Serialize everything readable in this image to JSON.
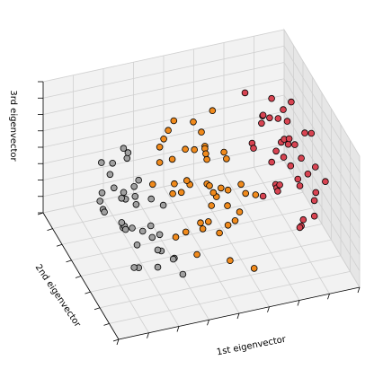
{
  "chart_data": {
    "type": "scatter",
    "title": "",
    "xlabel": "1st eigenvector",
    "ylabel": "2nd eigenvector",
    "zlabel": "3rd eigenvector",
    "tick_labels_visible": false,
    "grid": true,
    "legend": null,
    "xlim": [
      -4,
      4
    ],
    "ylim": [
      -1.5,
      1.5
    ],
    "zlim": [
      -1,
      1
    ],
    "view": {
      "elev": 48,
      "azim": -110
    },
    "groups": [
      {
        "color": "#a0a0a0",
        "points": [
          [
            -3.0,
            -0.5,
            0.5
          ],
          [
            -2.9,
            0.5,
            0.3
          ],
          [
            -3.2,
            -0.2,
            0.6
          ],
          [
            -2.7,
            0.3,
            0.4
          ],
          [
            -2.5,
            -0.4,
            0.2
          ],
          [
            -2.6,
            -0.1,
            0.1
          ],
          [
            -2.3,
            0.2,
            0.5
          ],
          [
            -2.1,
            -0.5,
            -0.1
          ],
          [
            -2.8,
            -0.6,
            0.0
          ],
          [
            -2.4,
            0.6,
            -0.2
          ],
          [
            -2.0,
            0.1,
            0.2
          ],
          [
            -2.2,
            -0.3,
            -0.3
          ],
          [
            -1.9,
            0.4,
            -0.1
          ],
          [
            -2.6,
            0.0,
            -0.4
          ],
          [
            -2.0,
            -0.8,
            -0.3
          ],
          [
            -1.8,
            -0.2,
            -0.5
          ],
          [
            -2.3,
            0.3,
            -0.6
          ],
          [
            -1.7,
            0.6,
            -0.4
          ],
          [
            -2.5,
            -0.5,
            -0.7
          ],
          [
            -1.6,
            -0.4,
            0.1
          ],
          [
            -1.9,
            0.9,
            -0.6
          ],
          [
            -2.7,
            0.8,
            -0.5
          ],
          [
            -1.5,
            0.2,
            -0.2
          ],
          [
            -2.2,
            -0.9,
            -0.2
          ],
          [
            -1.4,
            -0.6,
            -0.6
          ],
          [
            -2.1,
            0.5,
            -0.8
          ],
          [
            -1.3,
            0.1,
            -0.7
          ],
          [
            -2.4,
            -0.2,
            -0.9
          ],
          [
            -1.6,
            1.0,
            0.0
          ],
          [
            -3.1,
            0.2,
            -0.2
          ],
          [
            -1.7,
            -0.3,
            -0.9
          ],
          [
            -2.0,
            0.7,
            0.3
          ],
          [
            -1.2,
            -0.7,
            -0.8
          ],
          [
            -2.9,
            -0.3,
            -0.1
          ],
          [
            -1.8,
            0.4,
            -1.0
          ],
          [
            -2.3,
            1.1,
            -0.9
          ],
          [
            -1.1,
            -0.2,
            -0.9
          ],
          [
            -3.3,
            0.0,
            0.2
          ]
        ]
      },
      {
        "color": "#f08a1c",
        "points": [
          [
            -1.0,
            0.3,
            0.6
          ],
          [
            -0.8,
            -0.5,
            0.4
          ],
          [
            -0.6,
            0.6,
            0.5
          ],
          [
            -0.4,
            -0.2,
            0.7
          ],
          [
            -0.2,
            0.4,
            0.3
          ],
          [
            0.0,
            -0.6,
            0.2
          ],
          [
            0.2,
            0.1,
            0.5
          ],
          [
            0.4,
            -0.3,
            0.1
          ],
          [
            0.6,
            0.5,
            0.0
          ],
          [
            0.8,
            -0.1,
            -0.1
          ],
          [
            1.0,
            0.3,
            0.2
          ],
          [
            -0.9,
            0.0,
            0.1
          ],
          [
            -0.7,
            -0.8,
            0.0
          ],
          [
            -0.5,
            0.2,
            -0.2
          ],
          [
            -0.3,
            0.8,
            -0.1
          ],
          [
            -0.1,
            -0.4,
            -0.3
          ],
          [
            0.1,
            0.7,
            -0.4
          ],
          [
            0.3,
            -0.7,
            -0.2
          ],
          [
            0.5,
            0.2,
            -0.5
          ],
          [
            0.7,
            -0.5,
            -0.3
          ],
          [
            0.9,
            0.6,
            -0.6
          ],
          [
            1.1,
            -0.2,
            -0.4
          ],
          [
            -1.1,
            -0.3,
            -0.5
          ],
          [
            -0.6,
            -0.1,
            -0.6
          ],
          [
            -0.2,
            0.9,
            -0.7
          ],
          [
            0.2,
            -0.9,
            -0.6
          ],
          [
            0.6,
            0.0,
            -0.8
          ],
          [
            1.2,
            0.4,
            -0.7
          ],
          [
            -0.8,
            0.7,
            0.2
          ],
          [
            0.0,
            0.0,
            0.8
          ],
          [
            0.4,
            0.8,
            0.4
          ],
          [
            -0.4,
            -0.7,
            0.5
          ],
          [
            0.8,
            -0.8,
            0.3
          ],
          [
            -1.2,
            0.5,
            -0.2
          ],
          [
            1.3,
            -0.6,
            0.1
          ],
          [
            0.3,
            0.3,
            -0.9
          ],
          [
            -0.3,
            -0.5,
            0.9
          ],
          [
            0.9,
            0.9,
            -0.2
          ],
          [
            -0.9,
            -0.9,
            -0.4
          ],
          [
            1.4,
            0.1,
            -0.2
          ],
          [
            0.1,
            -0.2,
            0.1
          ],
          [
            -0.5,
            0.5,
            0.7
          ],
          [
            0.5,
            -0.4,
            0.6
          ],
          [
            1.0,
            -0.9,
            -0.8
          ],
          [
            -1.3,
            0.1,
            0.4
          ],
          [
            0.7,
            0.4,
            0.8
          ]
        ]
      },
      {
        "color": "#d84452",
        "points": [
          [
            2.2,
            0.2,
            0.7
          ],
          [
            2.4,
            -0.3,
            0.6
          ],
          [
            2.6,
            0.4,
            0.5
          ],
          [
            2.8,
            -0.1,
            0.4
          ],
          [
            3.0,
            0.3,
            0.2
          ],
          [
            3.2,
            -0.4,
            0.1
          ],
          [
            3.4,
            0.1,
            0.0
          ],
          [
            2.5,
            0.6,
            0.3
          ],
          [
            2.7,
            -0.6,
            0.2
          ],
          [
            2.9,
            0.5,
            -0.1
          ],
          [
            3.1,
            -0.2,
            -0.2
          ],
          [
            3.3,
            0.4,
            -0.3
          ],
          [
            3.5,
            -0.3,
            -0.4
          ],
          [
            2.3,
            -0.2,
            -0.1
          ],
          [
            2.5,
            0.0,
            -0.3
          ],
          [
            2.7,
            0.2,
            -0.5
          ],
          [
            2.9,
            -0.5,
            -0.6
          ],
          [
            3.1,
            0.6,
            -0.7
          ],
          [
            3.3,
            -0.1,
            -0.8
          ],
          [
            3.6,
            0.2,
            0.3
          ],
          [
            2.1,
            0.5,
            0.1
          ],
          [
            2.4,
            0.8,
            -0.2
          ],
          [
            2.6,
            -0.8,
            -0.4
          ],
          [
            2.8,
            0.1,
            0.8
          ],
          [
            3.0,
            0.8,
            0.5
          ],
          [
            3.2,
            -0.7,
            0.4
          ],
          [
            3.4,
            0.5,
            0.6
          ],
          [
            3.7,
            -0.5,
            0.0
          ],
          [
            2.0,
            -0.4,
            0.4
          ],
          [
            2.3,
            0.3,
            -0.6
          ],
          [
            2.6,
            -0.3,
            0.9
          ],
          [
            2.9,
            0.2,
            0.0
          ],
          [
            3.1,
            0.0,
            0.3
          ],
          [
            3.5,
            0.7,
            -0.1
          ],
          [
            3.8,
            0.0,
            -0.5
          ],
          [
            2.2,
            0.9,
            0.6
          ],
          [
            2.8,
            0.9,
            0.2
          ],
          [
            3.0,
            -0.9,
            -0.2
          ],
          [
            3.3,
            0.9,
            0.1
          ],
          [
            3.9,
            0.3,
            0.2
          ]
        ]
      }
    ]
  }
}
